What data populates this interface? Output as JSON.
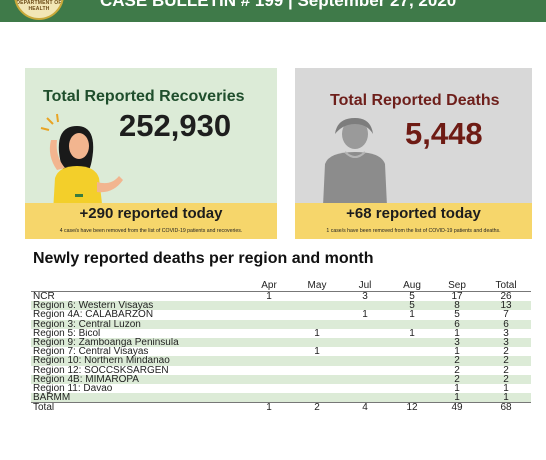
{
  "header": {
    "seal_text": "DEPARTMENT OF HEALTH",
    "bulletin_text": "CASE BULLETIN # 199 | September 27, 2020"
  },
  "recoveries": {
    "title": "Total Reported Recoveries",
    "total": "252,930",
    "today": "+290 reported today",
    "note": "4 case/s have been removed from the list of COVID-19 patients and recoveries."
  },
  "deaths": {
    "title": "Total Reported Deaths",
    "total": "5,448",
    "today": "+68 reported today",
    "note": "1 case/s have been removed from the list of COVID-19 patients and deaths."
  },
  "regional_table": {
    "title": "Newly reported deaths per region and month",
    "columns": [
      "",
      "Apr",
      "May",
      "Jul",
      "Aug",
      "Sep",
      "Total"
    ],
    "rows": [
      {
        "region": "NCR",
        "apr": "1",
        "may": "",
        "jul": "3",
        "aug": "5",
        "sep": "17",
        "total": "26"
      },
      {
        "region": "Region 6: Western Visayas",
        "apr": "",
        "may": "",
        "jul": "",
        "aug": "5",
        "sep": "8",
        "total": "13"
      },
      {
        "region": "Region 4A: CALABARZON",
        "apr": "",
        "may": "",
        "jul": "1",
        "aug": "1",
        "sep": "5",
        "total": "7"
      },
      {
        "region": "Region 3: Central Luzon",
        "apr": "",
        "may": "",
        "jul": "",
        "aug": "",
        "sep": "6",
        "total": "6"
      },
      {
        "region": "Region 5: Bicol",
        "apr": "",
        "may": "1",
        "jul": "",
        "aug": "1",
        "sep": "1",
        "total": "3"
      },
      {
        "region": "Region 9: Zamboanga Peninsula",
        "apr": "",
        "may": "",
        "jul": "",
        "aug": "",
        "sep": "3",
        "total": "3"
      },
      {
        "region": "Region 7: Central Visayas",
        "apr": "",
        "may": "1",
        "jul": "",
        "aug": "",
        "sep": "1",
        "total": "2"
      },
      {
        "region": "Region 10: Northern Mindanao",
        "apr": "",
        "may": "",
        "jul": "",
        "aug": "",
        "sep": "2",
        "total": "2"
      },
      {
        "region": "Region 12: SOCCSKSARGEN",
        "apr": "",
        "may": "",
        "jul": "",
        "aug": "",
        "sep": "2",
        "total": "2"
      },
      {
        "region": "Region 4B: MIMAROPA",
        "apr": "",
        "may": "",
        "jul": "",
        "aug": "",
        "sep": "2",
        "total": "2"
      },
      {
        "region": "Region 11: Davao",
        "apr": "",
        "may": "",
        "jul": "",
        "aug": "",
        "sep": "1",
        "total": "1"
      },
      {
        "region": "BARMM",
        "apr": "",
        "may": "",
        "jul": "",
        "aug": "",
        "sep": "1",
        "total": "1"
      }
    ],
    "total_row": {
      "region": "Total",
      "apr": "1",
      "may": "2",
      "jul": "4",
      "aug": "12",
      "sep": "49",
      "total": "68"
    }
  },
  "colors": {
    "header_green": "#3f7a49",
    "recoveries_bg": "#dcebd7",
    "deaths_bg": "#d8d8d8",
    "today_band": "#f6d66b",
    "deaths_number": "#6e1b14",
    "row_shade": "#dcebd7"
  },
  "icons": {
    "recoveries": "woman-waving-illustration",
    "deaths": "person-silhouette-illustration"
  }
}
